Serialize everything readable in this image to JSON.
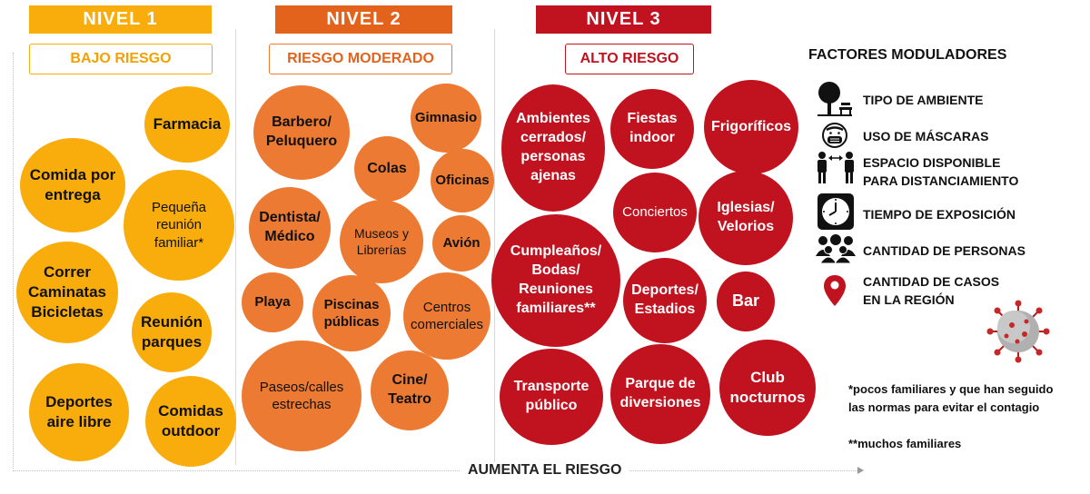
{
  "colors": {
    "nivel1": "#f9ad0c",
    "nivel2": "#ec7a33",
    "nivel3": "#c1121f"
  },
  "levels": [
    {
      "title": "NIVEL 1",
      "risk": "BAJO RIESGO"
    },
    {
      "title": "NIVEL 2",
      "risk": "RIESGO MODERADO"
    },
    {
      "title": "NIVEL 3",
      "risk": "ALTO RIESGO"
    }
  ],
  "nivel1_activities": [
    "Farmacia",
    "Comida por\nentrega",
    "Pequeña\nreunión\nfamiliar*",
    "Correr\nCaminatas\nBicicletas",
    "Reunión\nparques",
    "Deportes\naire libre",
    "Comidas\noutdoor"
  ],
  "nivel2_activities": [
    "Barbero/\nPeluquero",
    "Gimnasio",
    "Colas",
    "Oficinas",
    "Dentista/\nMédico",
    "Museos y\nLibrerías",
    "Avión",
    "Playa",
    "Piscinas\npúblicas",
    "Centros\ncomerciales",
    "Paseos/calles\nestrechas",
    "Cine/\nTeatro"
  ],
  "nivel3_activities": [
    "Ambientes\ncerrados/\npersonas\najenas",
    "Fiestas\nindoor",
    "Frigoríficos",
    "Conciertos",
    "Iglesias/\nVelorios",
    "Cumpleaños/\nBodas/\nReuniones\nfamiliares**",
    "Deportes/\nEstadios",
    "Bar",
    "Transporte\npúblico",
    "Parque de\ndiversiones",
    "Club\nnocturnos"
  ],
  "axis_label": "AUMENTA EL RIESGO",
  "factors": {
    "title": "FACTORES MODULADORES",
    "items": [
      {
        "label": "TIPO DE AMBIENTE",
        "icon": "tree-bench-icon"
      },
      {
        "label": "USO DE MÁSCARAS",
        "icon": "mask-face-icon"
      },
      {
        "label": "ESPACIO DISPONIBLE\nPARA DISTANCIAMIENTO",
        "icon": "distancing-people-icon"
      },
      {
        "label": "TIEMPO DE EXPOSICIÓN",
        "icon": "clock-icon"
      },
      {
        "label": "CANTIDAD DE PERSONAS",
        "icon": "crowd-icon"
      },
      {
        "label": "CANTIDAD DE CASOS\nEN LA REGIÓN",
        "icon": "location-pin-icon"
      }
    ]
  },
  "notes": [
    "*pocos familiares y que han seguido\nlas normas para evitar el contagio",
    "**muchos familiares"
  ]
}
